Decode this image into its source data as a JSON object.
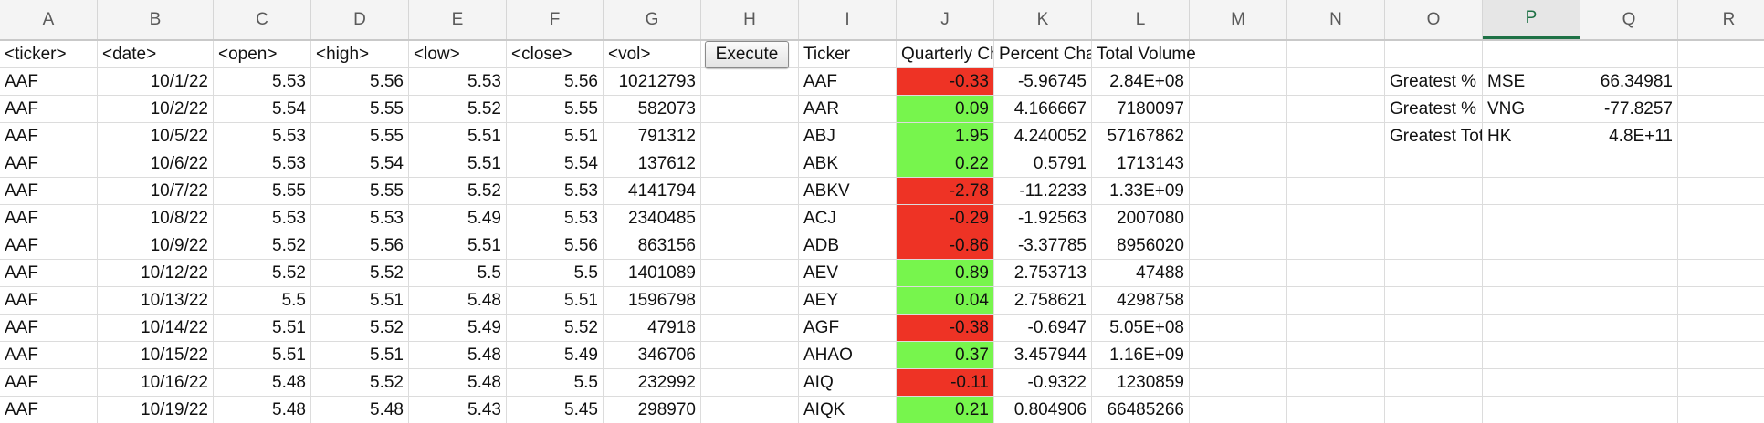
{
  "columns": [
    "A",
    "B",
    "C",
    "D",
    "E",
    "F",
    "G",
    "H",
    "I",
    "J",
    "K",
    "L",
    "M",
    "N",
    "O",
    "P",
    "Q",
    "R"
  ],
  "selected_column": "P",
  "execute_label": "Execute",
  "headers": {
    "ticker": "<ticker>",
    "date": "<date>",
    "open": "<open>",
    "high": "<high>",
    "low": "<low>",
    "close": "<close>",
    "vol": "<vol>",
    "summary_ticker": "Ticker",
    "quarterly_change": "Quarterly Change",
    "percent_change": "Percent Change",
    "total_volume": "Total Volume"
  },
  "raw_rows": [
    [
      "AAF",
      "10/1/22",
      "5.53",
      "5.56",
      "5.53",
      "5.56",
      "10212793"
    ],
    [
      "AAF",
      "10/2/22",
      "5.54",
      "5.55",
      "5.52",
      "5.55",
      "582073"
    ],
    [
      "AAF",
      "10/5/22",
      "5.53",
      "5.55",
      "5.51",
      "5.51",
      "791312"
    ],
    [
      "AAF",
      "10/6/22",
      "5.53",
      "5.54",
      "5.51",
      "5.54",
      "137612"
    ],
    [
      "AAF",
      "10/7/22",
      "5.55",
      "5.55",
      "5.52",
      "5.53",
      "4141794"
    ],
    [
      "AAF",
      "10/8/22",
      "5.53",
      "5.53",
      "5.49",
      "5.53",
      "2340485"
    ],
    [
      "AAF",
      "10/9/22",
      "5.52",
      "5.56",
      "5.51",
      "5.56",
      "863156"
    ],
    [
      "AAF",
      "10/12/22",
      "5.52",
      "5.52",
      "5.5",
      "5.5",
      "1401089"
    ],
    [
      "AAF",
      "10/13/22",
      "5.5",
      "5.51",
      "5.48",
      "5.51",
      "1596798"
    ],
    [
      "AAF",
      "10/14/22",
      "5.51",
      "5.52",
      "5.49",
      "5.52",
      "47918"
    ],
    [
      "AAF",
      "10/15/22",
      "5.51",
      "5.51",
      "5.48",
      "5.49",
      "346706"
    ],
    [
      "AAF",
      "10/16/22",
      "5.48",
      "5.52",
      "5.48",
      "5.5",
      "232992"
    ],
    [
      "AAF",
      "10/19/22",
      "5.48",
      "5.48",
      "5.43",
      "5.45",
      "298970"
    ]
  ],
  "summary_rows": [
    [
      "AAF",
      "-0.33",
      "-5.96745",
      "2.84E+08"
    ],
    [
      "AAR",
      "0.09",
      "4.166667",
      "7180097"
    ],
    [
      "ABJ",
      "1.95",
      "4.240052",
      "57167862"
    ],
    [
      "ABK",
      "0.22",
      "0.5791",
      "1713143"
    ],
    [
      "ABKV",
      "-2.78",
      "-11.2233",
      "1.33E+09"
    ],
    [
      "ACJ",
      "-0.29",
      "-1.92563",
      "2007080"
    ],
    [
      "ADB",
      "-0.86",
      "-3.37785",
      "8956020"
    ],
    [
      "AEV",
      "0.89",
      "2.753713",
      "47488"
    ],
    [
      "AEY",
      "0.04",
      "2.758621",
      "4298758"
    ],
    [
      "AGF",
      "-0.38",
      "-0.6947",
      "5.05E+08"
    ],
    [
      "AHAO",
      "0.37",
      "3.457944",
      "1.16E+09"
    ],
    [
      "AIQ",
      "-0.11",
      "-0.9322",
      "1230859"
    ],
    [
      "AIQK",
      "0.21",
      "0.804906",
      "66485266"
    ]
  ],
  "colors": {
    "positive": "#77f54d",
    "negative": "#ee3325",
    "selected_header": "#1e7145"
  },
  "greatest": [
    [
      "Greatest % Increase",
      "MSE",
      "66.34981"
    ],
    [
      "Greatest % Decrease",
      "VNG",
      "-77.8257"
    ],
    [
      "Greatest Total Volume",
      "HK",
      "4.8E+11"
    ]
  ]
}
